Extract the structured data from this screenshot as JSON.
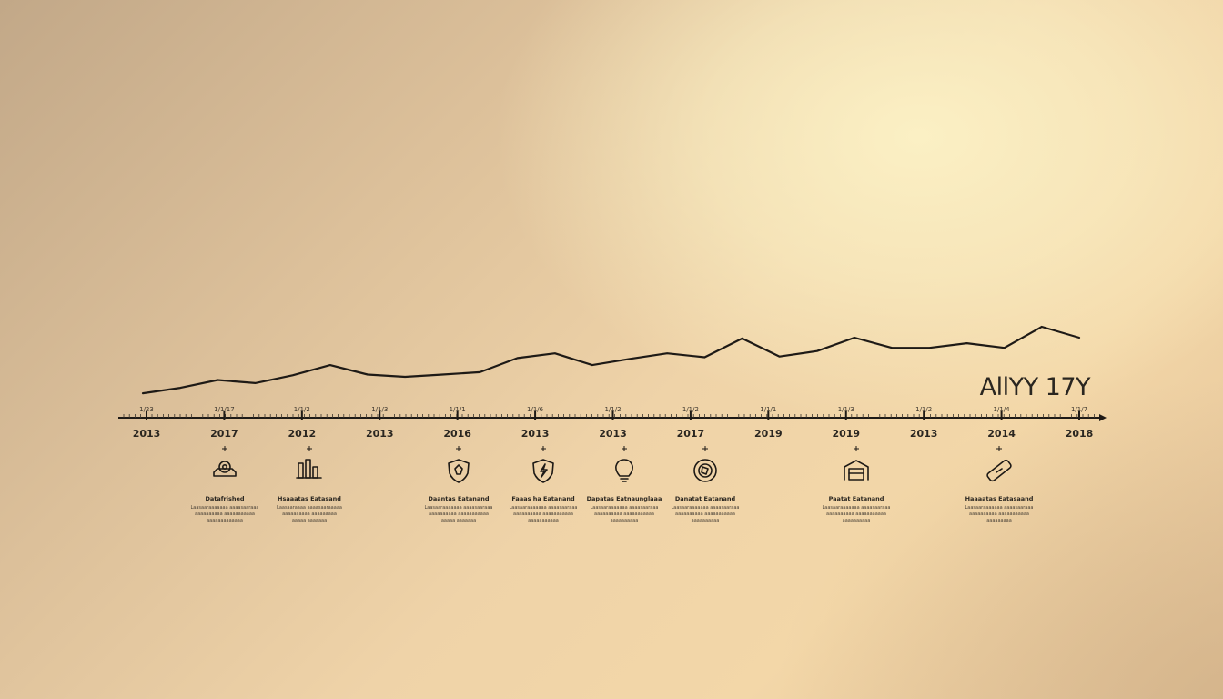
{
  "chart_data": {
    "type": "line",
    "corner_label": "AllYY 17Y",
    "axis_labels_bottom": [
      "2013",
      "2017",
      "2012",
      "2013",
      "2016",
      "2013",
      "2013",
      "2017",
      "2019",
      "2019",
      "2013",
      "2014",
      "2018"
    ],
    "axis_labels_top": [
      "1/23",
      "1/1/17",
      "1/1/2",
      "1/1/3",
      "1/1/1",
      "1/1/6",
      "1/1/2",
      "1/1/2",
      "1/1/1",
      "1/1/3",
      "1/1/2",
      "1/1/4",
      "1/1/7"
    ],
    "y_values": [
      1.5,
      2.2,
      3.2,
      2.8,
      3.8,
      5.1,
      3.9,
      3.6,
      3.9,
      4.2,
      6.0,
      6.6,
      5.1,
      5.9,
      6.6,
      6.1,
      8.5,
      6.2,
      6.9,
      8.6,
      7.3,
      7.3,
      7.9,
      7.3,
      10.0,
      8.6
    ],
    "grid": false,
    "legend": "none",
    "milestones": [
      {
        "icon": "camera-icon",
        "title": "Datafrished",
        "lines": [
          "Laasaaraaaaaaa aaaasaaraaa",
          "aaaaaaaaaa aaaaaaaaaaa",
          "aaaaaaaaaaaaa"
        ]
      },
      {
        "icon": "bars-icon",
        "title": "Hsaaatas Eatasand",
        "lines": [
          "Laasaaraaaa aaaasaaraaaaa",
          "aaaaaaaaaa aaaaaaaaa",
          "aaaaa aaaaaaa"
        ]
      },
      {
        "icon": "shield-icon",
        "title": "Daantas Eatanand",
        "lines": [
          "Laasaaraaaaaaa aaaasaaraaa",
          "aaaaaaaaaa aaaaaaaaaaa",
          "aaaaa aaaaaaa"
        ]
      },
      {
        "icon": "shield-bolt-icon",
        "title": "Faaas ha Eatanand",
        "lines": [
          "Laasaaraaaaaaa aaaasaaraaa",
          "aaaaaaaaaa aaaaaaaaaaa",
          "aaaaaaaaaaa"
        ]
      },
      {
        "icon": "lightbulb-icon",
        "title": "Dapatas Eatnaunglaaa",
        "lines": [
          "Laasaaraaaaaaa aaaasaaraaa",
          "aaaaaaaaaa aaaaaaaaaaa",
          "aaaaaaaaaa"
        ]
      },
      {
        "icon": "globe-icon",
        "title": "Danatat Eatanand",
        "lines": [
          "Laasaaraaaaaaa aaaasaaraaa",
          "aaaaaaaaaa aaaaaaaaaaa",
          "aaaaaaaaaa"
        ]
      },
      {
        "icon": "garage-icon",
        "title": "Paatat Eatanand",
        "lines": [
          "Laasaaraaaaaaa aaaasaaraaa",
          "aaaaaaaaaa aaaaaaaaaaa",
          "aaaaaaaaaa"
        ]
      },
      {
        "icon": "bandage-icon",
        "title": "Haaaatas Eatasaand",
        "lines": [
          "Laasaaraaaaaaa aaaasaaraaa",
          "aaaaaaaaaa aaaaaaaaaaa",
          "aaaaaaaaa"
        ]
      }
    ]
  },
  "colors": {
    "ink": "#1e1a16",
    "muted": "#4a4238"
  }
}
